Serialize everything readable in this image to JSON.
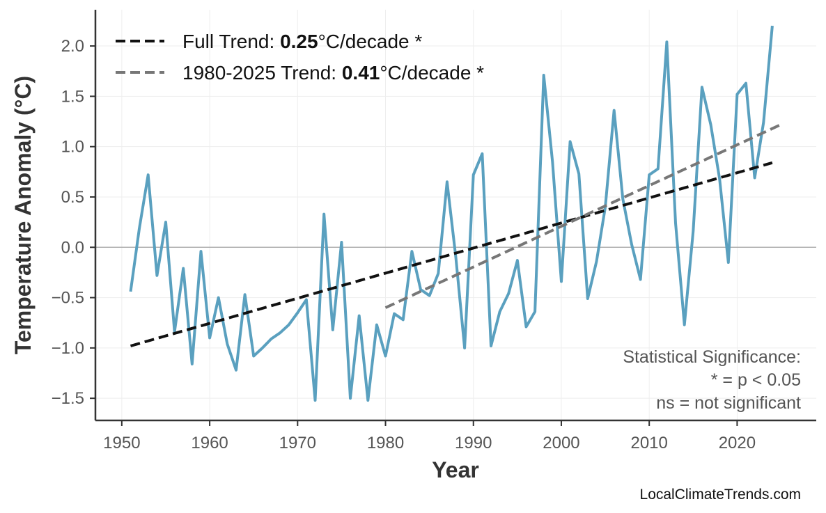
{
  "chart_data": {
    "type": "line",
    "xlabel": "Year",
    "ylabel": "Temperature Anomaly (°C)",
    "xlim": [
      1947,
      2029
    ],
    "ylim": [
      -1.72,
      2.36
    ],
    "xticks": [
      1950,
      1960,
      1970,
      1980,
      1990,
      2000,
      2010,
      2020
    ],
    "yticks": [
      -1.5,
      -1.0,
      -0.5,
      0.0,
      0.5,
      1.0,
      1.5,
      2.0
    ],
    "ytick_labels": [
      "−1.5",
      "−1.0",
      "−0.5",
      "0.0",
      "0.5",
      "1.0",
      "1.5",
      "2.0"
    ],
    "grid": true,
    "zero_line": true,
    "legend_position": "top-left",
    "colors": {
      "series": "#5aa0bf",
      "full_trend": "#111111",
      "recent_trend": "#777777"
    },
    "series": [
      {
        "values": [
          [
            1951,
            -0.44
          ],
          [
            1952,
            0.19
          ],
          [
            1953,
            0.72
          ],
          [
            1954,
            -0.28
          ],
          [
            1955,
            0.25
          ],
          [
            1956,
            -0.84
          ],
          [
            1957,
            -0.21
          ],
          [
            1958,
            -1.16
          ],
          [
            1959,
            -0.04
          ],
          [
            1960,
            -0.9
          ],
          [
            1961,
            -0.5
          ],
          [
            1962,
            -0.96
          ],
          [
            1963,
            -1.22
          ],
          [
            1964,
            -0.47
          ],
          [
            1965,
            -1.08
          ],
          [
            1966,
            -1.0
          ],
          [
            1967,
            -0.91
          ],
          [
            1968,
            -0.85
          ],
          [
            1969,
            -0.77
          ],
          [
            1970,
            -0.65
          ],
          [
            1971,
            -0.52
          ],
          [
            1972,
            -1.52
          ],
          [
            1973,
            0.33
          ],
          [
            1974,
            -0.82
          ],
          [
            1975,
            0.05
          ],
          [
            1976,
            -1.5
          ],
          [
            1977,
            -0.68
          ],
          [
            1978,
            -1.52
          ],
          [
            1979,
            -0.77
          ],
          [
            1980,
            -1.08
          ],
          [
            1981,
            -0.66
          ],
          [
            1982,
            -0.72
          ],
          [
            1983,
            -0.04
          ],
          [
            1984,
            -0.42
          ],
          [
            1985,
            -0.48
          ],
          [
            1986,
            -0.26
          ],
          [
            1987,
            0.65
          ],
          [
            1988,
            -0.1
          ],
          [
            1989,
            -1.0
          ],
          [
            1990,
            0.72
          ],
          [
            1991,
            0.93
          ],
          [
            1992,
            -0.98
          ],
          [
            1993,
            -0.64
          ],
          [
            1994,
            -0.46
          ],
          [
            1995,
            -0.13
          ],
          [
            1996,
            -0.79
          ],
          [
            1997,
            -0.64
          ],
          [
            1998,
            1.71
          ],
          [
            1999,
            0.85
          ],
          [
            2000,
            -0.34
          ],
          [
            2001,
            1.05
          ],
          [
            2002,
            0.73
          ],
          [
            2003,
            -0.51
          ],
          [
            2004,
            -0.14
          ],
          [
            2005,
            0.4
          ],
          [
            2006,
            1.36
          ],
          [
            2007,
            0.48
          ],
          [
            2008,
            0.03
          ],
          [
            2009,
            -0.32
          ],
          [
            2010,
            0.72
          ],
          [
            2011,
            0.78
          ],
          [
            2012,
            2.04
          ],
          [
            2013,
            0.24
          ],
          [
            2014,
            -0.77
          ],
          [
            2015,
            0.16
          ],
          [
            2016,
            1.59
          ],
          [
            2017,
            1.22
          ],
          [
            2018,
            0.68
          ],
          [
            2019,
            -0.15
          ],
          [
            2020,
            1.52
          ],
          [
            2021,
            1.63
          ],
          [
            2022,
            0.69
          ],
          [
            2023,
            1.24
          ],
          [
            2024,
            2.2
          ]
        ]
      }
    ],
    "trends": [
      {
        "label_prefix": "Full Trend: ",
        "label_value": "0.25",
        "label_suffix": "°C/decade *",
        "x": [
          1951,
          2024
        ],
        "y": [
          -0.98,
          0.84
        ]
      },
      {
        "label_prefix": "1980-2025 Trend: ",
        "label_value": "0.41",
        "label_suffix": "°C/decade *",
        "x": [
          1980,
          2025
        ],
        "y": [
          -0.6,
          1.22
        ]
      }
    ],
    "annotations": [
      "Statistical Significance:",
      "* = p < 0.05",
      "ns = not significant"
    ]
  },
  "source_credit": "LocalClimateTrends.com"
}
